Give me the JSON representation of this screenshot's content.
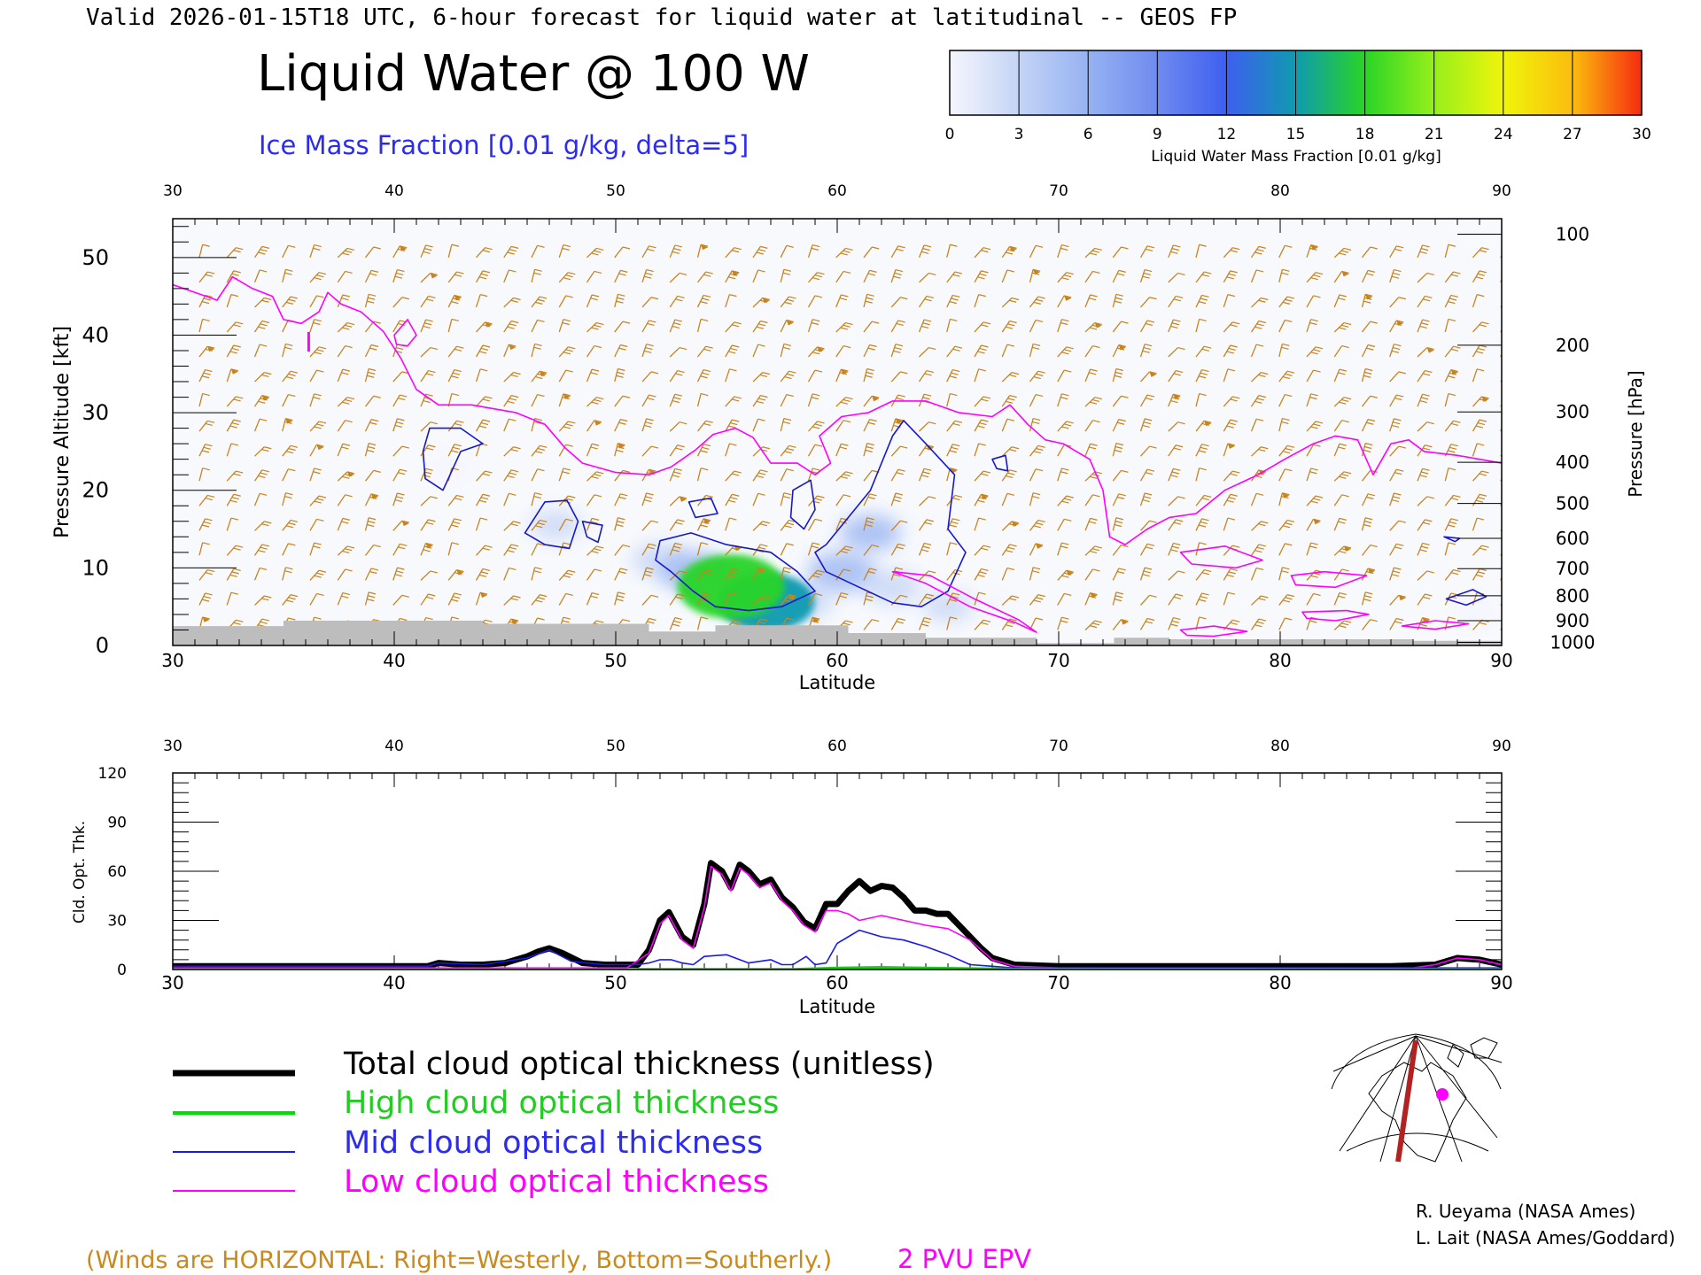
{
  "header": {
    "valid_line": "Valid 2026-01-15T18 UTC, 6-hour forecast for liquid water at latitudinal -- GEOS FP",
    "title": "Liquid Water @ 100 W",
    "subtitle": "Ice Mass Fraction [0.01 g/kg, delta=5]"
  },
  "colorbar": {
    "label": "Liquid Water Mass Fraction [0.01 g/kg]",
    "ticks": [
      "0",
      "3",
      "6",
      "9",
      "12",
      "15",
      "18",
      "21",
      "24",
      "27",
      "30"
    ],
    "colors": [
      "#f4f6fd",
      "#c4d4f6",
      "#96b2f2",
      "#6f8bf0",
      "#3e5ff0",
      "#109ab0",
      "#29d426",
      "#96ef1b",
      "#f0f50a",
      "#fbbd0e",
      "#fb7d12"
    ]
  },
  "chart_data": [
    {
      "type": "heatmap",
      "xlabel": "Latitude",
      "ylabel": "Pressure Altitude [kft]",
      "y2label": "Pressure [hPa]",
      "xlim": [
        30,
        90
      ],
      "ylim": [
        0,
        55
      ],
      "x_ticks": [
        "30",
        "40",
        "50",
        "60",
        "70",
        "80",
        "90"
      ],
      "y_ticks": [
        "0",
        "10",
        "20",
        "30",
        "40",
        "50"
      ],
      "pressure_ticks": [
        {
          "label": "100",
          "kft": 53
        },
        {
          "label": "200",
          "kft": 38.7
        },
        {
          "label": "300",
          "kft": 30.1
        },
        {
          "label": "400",
          "kft": 23.6
        },
        {
          "label": "500",
          "kft": 18.3
        },
        {
          "label": "600",
          "kft": 13.8
        },
        {
          "label": "700",
          "kft": 9.9
        },
        {
          "label": "800",
          "kft": 6.4
        },
        {
          "label": "900",
          "kft": 3.2
        },
        {
          "label": "1000",
          "kft": 0.4
        }
      ],
      "pv_label": "I",
      "liquid_water_blobs": [
        {
          "lat": 55.2,
          "kft": 7.6,
          "value": 19
        },
        {
          "lat": 56.8,
          "kft": 5.6,
          "value": 16
        },
        {
          "lat": 53.5,
          "kft": 9.5,
          "value": 8
        },
        {
          "lat": 60.2,
          "kft": 9.5,
          "value": 8
        },
        {
          "lat": 61.5,
          "kft": 14.5,
          "value": 6
        },
        {
          "lat": 52.0,
          "kft": 11.0,
          "value": 5
        },
        {
          "lat": 58.5,
          "kft": 5.5,
          "value": 5
        },
        {
          "lat": 62.5,
          "kft": 7.5,
          "value": 5
        },
        {
          "lat": 65.0,
          "kft": 5.0,
          "value": 3
        },
        {
          "lat": 67.0,
          "kft": 5.0,
          "value": 2
        },
        {
          "lat": 47.3,
          "kft": 15.5,
          "value": 3
        },
        {
          "lat": 42.5,
          "kft": 23.0,
          "value": 2
        },
        {
          "lat": 88.8,
          "kft": 4.5,
          "value": 2
        }
      ],
      "ice_contours": [
        [
          [
            41.6,
            28
          ],
          [
            43.0,
            28
          ],
          [
            44.0,
            26
          ],
          [
            43.0,
            25
          ],
          [
            42.6,
            22.5
          ],
          [
            42.2,
            20
          ],
          [
            41.4,
            21.5
          ],
          [
            41.3,
            25
          ]
        ],
        [
          [
            46.8,
            18.5
          ],
          [
            47.8,
            18.7
          ],
          [
            48.3,
            16
          ],
          [
            47.9,
            12.5
          ],
          [
            46.8,
            13
          ],
          [
            45.9,
            14.5
          ]
        ],
        [
          [
            48.5,
            16
          ],
          [
            49.4,
            15.5
          ],
          [
            49.2,
            13.3
          ],
          [
            48.7,
            14
          ]
        ],
        [
          [
            52.0,
            13.5
          ],
          [
            53.4,
            14.5
          ],
          [
            55.0,
            13
          ],
          [
            57.0,
            12
          ],
          [
            58.2,
            9.5
          ],
          [
            59.0,
            7
          ],
          [
            57.5,
            5
          ],
          [
            56.0,
            4.5
          ],
          [
            54.5,
            5
          ],
          [
            53.5,
            7
          ],
          [
            52.5,
            9.5
          ],
          [
            51.8,
            11
          ]
        ],
        [
          [
            59.5,
            13
          ],
          [
            61.5,
            20
          ],
          [
            62.5,
            27
          ],
          [
            63.0,
            29
          ],
          [
            64.0,
            26
          ],
          [
            65.3,
            22
          ],
          [
            65.0,
            15
          ],
          [
            65.8,
            12
          ],
          [
            65.0,
            7
          ],
          [
            63.8,
            5
          ],
          [
            62.5,
            5.5
          ],
          [
            61.0,
            7.5
          ],
          [
            59.5,
            9.5
          ],
          [
            59.0,
            12
          ]
        ],
        [
          [
            58.0,
            20
          ],
          [
            58.8,
            21.3
          ],
          [
            59.0,
            17.5
          ],
          [
            58.5,
            15
          ],
          [
            57.9,
            16.5
          ]
        ],
        [
          [
            53.3,
            18.5
          ],
          [
            54.3,
            19
          ],
          [
            54.6,
            17
          ],
          [
            53.6,
            16.5
          ]
        ],
        [
          [
            67.0,
            24
          ],
          [
            67.6,
            24.5
          ],
          [
            67.7,
            22.5
          ],
          [
            67.2,
            22.8
          ]
        ],
        [
          [
            87.4,
            14
          ],
          [
            88.1,
            13.8
          ],
          [
            87.9,
            13.4
          ]
        ],
        [
          [
            87.5,
            6
          ],
          [
            88.7,
            7.2
          ],
          [
            89.3,
            6.3
          ],
          [
            88.4,
            5.2
          ]
        ]
      ],
      "epv_2pvu_line": [
        [
          30,
          46.5
        ],
        [
          31,
          45.5
        ],
        [
          32,
          44.5
        ],
        [
          32.7,
          47.5
        ],
        [
          33.6,
          46
        ],
        [
          34.5,
          45
        ],
        [
          35.0,
          42
        ],
        [
          35.8,
          41.5
        ],
        [
          36.6,
          43
        ],
        [
          37.0,
          45.5
        ],
        [
          37.6,
          44
        ],
        [
          38.5,
          43
        ],
        [
          39.5,
          40.5
        ],
        [
          40.3,
          37
        ],
        [
          41.0,
          33
        ],
        [
          42.0,
          31
        ],
        [
          43.5,
          31
        ],
        [
          45.5,
          30
        ],
        [
          46.8,
          28.5
        ],
        [
          47.7,
          25.5
        ],
        [
          48.5,
          23.5
        ],
        [
          50.0,
          22.3
        ],
        [
          51.5,
          22
        ],
        [
          52.5,
          23
        ],
        [
          53.6,
          25.2
        ],
        [
          54.4,
          27.2
        ],
        [
          55.4,
          28
        ],
        [
          56.2,
          26.8
        ],
        [
          57.0,
          23.5
        ],
        [
          58.2,
          23.5
        ],
        [
          59.0,
          22
        ],
        [
          59.7,
          23.5
        ],
        [
          59.2,
          27
        ],
        [
          60.2,
          29.5
        ],
        [
          61.4,
          30
        ],
        [
          62.5,
          31.5
        ],
        [
          64.0,
          31.5
        ],
        [
          65.5,
          30
        ],
        [
          67.0,
          29.5
        ],
        [
          67.8,
          31
        ],
        [
          68.6,
          28.5
        ],
        [
          69.4,
          26.5
        ],
        [
          70.2,
          26
        ],
        [
          71.4,
          24
        ],
        [
          72.0,
          20
        ],
        [
          72.3,
          14
        ],
        [
          73.0,
          13
        ],
        [
          74.0,
          15
        ],
        [
          75.0,
          16.5
        ],
        [
          76.2,
          17
        ],
        [
          77.5,
          20
        ],
        [
          79.0,
          22
        ],
        [
          80.2,
          24
        ],
        [
          81.5,
          26
        ],
        [
          82.5,
          27
        ],
        [
          83.5,
          26.5
        ],
        [
          84.2,
          22
        ],
        [
          85.0,
          26
        ],
        [
          85.8,
          26.5
        ],
        [
          86.5,
          25
        ],
        [
          88.0,
          24.5
        ],
        [
          89.0,
          24
        ],
        [
          90.0,
          23.5
        ]
      ],
      "epv_closed": [
        [
          [
            40.0,
            40
          ],
          [
            40.6,
            42
          ],
          [
            41.0,
            40
          ],
          [
            40.6,
            38.6
          ],
          [
            40.1,
            38.8
          ]
        ],
        [
          [
            75.5,
            12
          ],
          [
            77.5,
            12.8
          ],
          [
            79.2,
            11
          ],
          [
            78.0,
            10
          ],
          [
            76.0,
            10.5
          ]
        ],
        [
          [
            80.5,
            9
          ],
          [
            82.0,
            9.5
          ],
          [
            83.9,
            9
          ],
          [
            82.5,
            7.5
          ],
          [
            80.7,
            7.8
          ]
        ],
        [
          [
            81.0,
            4.3
          ],
          [
            83.0,
            4.5
          ],
          [
            84.0,
            4
          ],
          [
            82.5,
            3.2
          ],
          [
            81.2,
            3.5
          ]
        ],
        [
          [
            75.5,
            2
          ],
          [
            77.0,
            2.5
          ],
          [
            78.5,
            1.8
          ],
          [
            77.0,
            1.2
          ],
          [
            75.8,
            1.3
          ]
        ],
        [
          [
            85.5,
            2.5
          ],
          [
            87.0,
            3.2
          ],
          [
            88.5,
            2.8
          ],
          [
            87.0,
            2.1
          ]
        ],
        [
          [
            62.5,
            9.5
          ],
          [
            64.0,
            8
          ],
          [
            66.0,
            5
          ],
          [
            68.0,
            3
          ],
          [
            69.0,
            1.7
          ],
          [
            68.2,
            3.3
          ],
          [
            66.2,
            6
          ],
          [
            64.2,
            9
          ]
        ]
      ],
      "surface_kft": [
        [
          30,
          2.5
        ],
        [
          35,
          3.2
        ],
        [
          44,
          2.8
        ],
        [
          51.5,
          1.8
        ],
        [
          54.5,
          2.6
        ],
        [
          60.5,
          1.6
        ],
        [
          64,
          1.0
        ],
        [
          69,
          0.3
        ],
        [
          72.5,
          1.0
        ],
        [
          75,
          0.8
        ],
        [
          82,
          0.8
        ],
        [
          86,
          0.6
        ],
        [
          90,
          0.5
        ]
      ],
      "wind_barb_note": "(Winds are HORIZONTAL: Right=Westerly, Bottom=Southerly.)",
      "epv_note": "2 PVU EPV"
    },
    {
      "type": "line",
      "xlabel": "Latitude",
      "ylabel": "Cld. Opt. Thk.",
      "xlim": [
        30,
        90
      ],
      "ylim": [
        0,
        120
      ],
      "x_ticks": [
        "30",
        "40",
        "50",
        "60",
        "70",
        "80",
        "90"
      ],
      "y_ticks": [
        "0",
        "30",
        "60",
        "90",
        "120"
      ],
      "series": [
        {
          "name": "Total cloud optical thickness (unitless)",
          "color": "#000000",
          "x": [
            30,
            40,
            41.5,
            42,
            43,
            44,
            45,
            46,
            46.5,
            47,
            47.6,
            48.5,
            49.5,
            50.5,
            51,
            51.5,
            52,
            52.4,
            53,
            53.5,
            54,
            54.3,
            54.8,
            55.2,
            55.6,
            56,
            56.5,
            57,
            57.5,
            58,
            58.5,
            59,
            59.5,
            60,
            60.5,
            61,
            61.5,
            62,
            62.5,
            63,
            63.5,
            64,
            64.5,
            65,
            65.5,
            66,
            66.5,
            67,
            68,
            70,
            85,
            87,
            88,
            89,
            90
          ],
          "y": [
            2,
            2,
            2,
            4,
            3,
            3,
            4,
            8,
            11,
            13,
            10,
            4,
            3,
            3,
            3,
            12,
            30,
            35,
            20,
            15,
            40,
            65,
            60,
            50,
            64,
            60,
            52,
            55,
            44,
            38,
            29,
            25,
            40,
            40,
            48,
            54,
            48,
            51,
            50,
            44,
            36,
            36,
            34,
            34,
            27,
            20,
            13,
            7,
            3,
            2,
            2,
            3,
            7,
            6,
            3
          ]
        },
        {
          "name": "High cloud optical thickness",
          "color": "#00dd00",
          "x": [
            30,
            58,
            60,
            62,
            66,
            68,
            90
          ],
          "y": [
            0,
            0,
            0.8,
            1.2,
            0.5,
            0.2,
            0
          ]
        },
        {
          "name": "Mid cloud optical thickness",
          "color": "#1a1ae6",
          "x": [
            30,
            40,
            41.5,
            42,
            44,
            46,
            47,
            48,
            49.5,
            51,
            51.5,
            52,
            52.5,
            53,
            53.5,
            54,
            55,
            56,
            57,
            57.5,
            58,
            58.6,
            59,
            59.5,
            60,
            60.5,
            61,
            62,
            63,
            64,
            65,
            66,
            67,
            68,
            90
          ],
          "y": [
            2,
            2,
            2,
            4,
            3,
            7,
            12,
            5,
            3,
            3,
            4,
            6,
            6,
            4,
            3,
            8,
            9,
            4,
            6,
            3,
            3,
            8,
            3,
            4,
            16,
            20,
            24,
            20,
            18,
            14,
            9,
            3,
            2,
            1,
            1
          ]
        },
        {
          "name": "Low cloud optical thickness",
          "color": "#ff00ff",
          "x": [
            30,
            50.5,
            51.5,
            52,
            52.4,
            53,
            53.5,
            54,
            54.3,
            54.8,
            55.2,
            55.6,
            56,
            56.5,
            57,
            57.5,
            58,
            58.5,
            59,
            59.5,
            60,
            60.5,
            61,
            62,
            63,
            64,
            65,
            66,
            66.5,
            67,
            68,
            70,
            86,
            87,
            88,
            89,
            90
          ],
          "y": [
            1,
            1,
            10,
            28,
            33,
            18,
            13,
            38,
            63,
            58,
            48,
            62,
            58,
            50,
            53,
            42,
            36,
            27,
            23,
            36,
            36,
            34,
            30,
            33,
            30,
            27,
            25,
            18,
            12,
            6,
            2,
            1,
            1,
            3,
            7,
            6,
            3
          ]
        }
      ]
    }
  ],
  "credits": {
    "line1": "R. Ueyama (NASA Ames)",
    "line2": "L. Lait (NASA Ames/Goddard)"
  },
  "inset_map": {
    "icon": "polar-map-icon",
    "track_color": "#b22222",
    "marker_color": "#ff00ff"
  }
}
